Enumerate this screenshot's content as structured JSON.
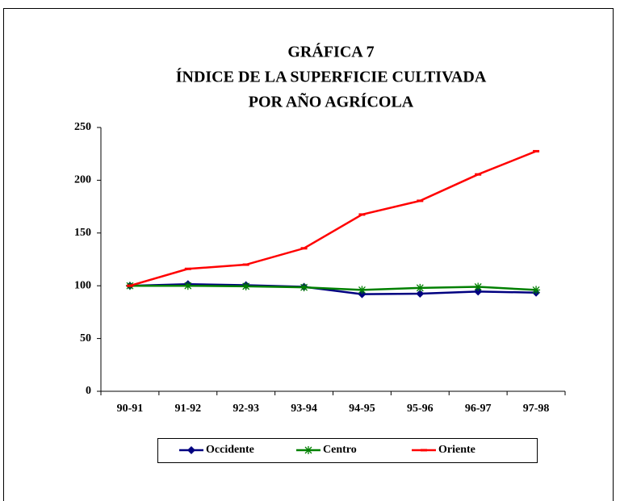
{
  "chart_data": {
    "type": "line",
    "title": [
      "GRÁFICA 7",
      "ÍNDICE DE LA SUPERFICIE CULTIVADA",
      "POR AÑO AGRÍCOLA"
    ],
    "categories": [
      "90-91",
      "91-92",
      "92-93",
      "93-94",
      "94-95",
      "95-96",
      "96-97",
      "97-98"
    ],
    "series": [
      {
        "name": "Occidente",
        "color": "#000080",
        "marker": "diamond",
        "values": [
          100,
          101.5,
          100.5,
          99,
          92,
          92.5,
          94.5,
          93.5
        ]
      },
      {
        "name": "Centro",
        "color": "#008000",
        "marker": "asterisk",
        "values": [
          100,
          100,
          99.5,
          98.5,
          96,
          98,
          99,
          96
        ]
      },
      {
        "name": "Oriente",
        "color": "#ff0000",
        "marker": "dash",
        "values": [
          100,
          116,
          120,
          135.5,
          167.5,
          180.5,
          205.5,
          227.5
        ]
      }
    ],
    "ylim": [
      0,
      250
    ],
    "yticks": [
      0,
      50,
      100,
      150,
      200,
      250
    ],
    "legend": "bottom"
  }
}
